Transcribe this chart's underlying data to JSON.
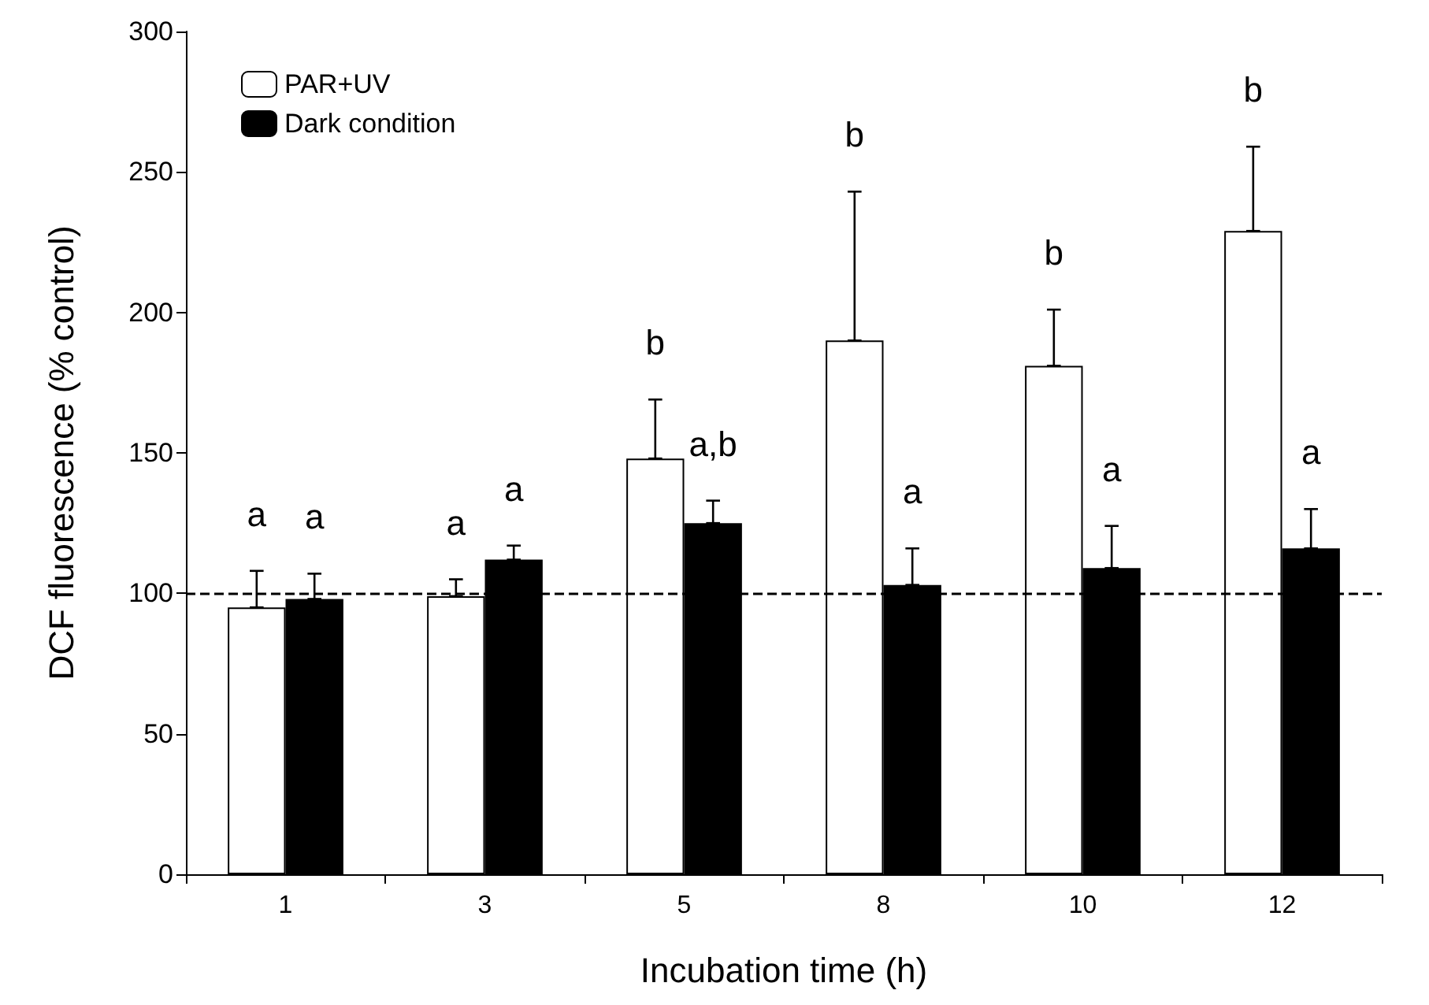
{
  "chart_data": {
    "type": "bar",
    "xlabel": "Incubation time (h)",
    "ylabel": "DCF fluorescence (% control)",
    "categories": [
      "1",
      "3",
      "5",
      "8",
      "10",
      "12"
    ],
    "series": [
      {
        "name": "PAR+UV",
        "color": "#ffffff",
        "values": [
          95,
          99,
          148,
          190,
          181,
          229
        ],
        "errors": [
          [
            95,
            108
          ],
          [
            99,
            105
          ],
          [
            148,
            169
          ],
          [
            190,
            243
          ],
          [
            181,
            201
          ],
          [
            229,
            259
          ]
        ]
      },
      {
        "name": "Dark condition",
        "color": "#000000",
        "values": [
          98,
          112,
          125,
          103,
          109,
          116
        ],
        "errors": [
          [
            98,
            107
          ],
          [
            112,
            117
          ],
          [
            125,
            133
          ],
          [
            103,
            116
          ],
          [
            109,
            124
          ],
          [
            116,
            130
          ]
        ]
      }
    ],
    "ylim": [
      0,
      300
    ],
    "yticks": [
      0,
      50,
      100,
      150,
      200,
      250,
      300
    ],
    "ref_lines": [
      {
        "axis": "y",
        "value": 100,
        "color": "#000000",
        "line_style": "dashed"
      }
    ],
    "annotations": [
      "a",
      "a",
      "a",
      "a",
      "b",
      "a,b",
      "b",
      "a",
      "b",
      "a",
      "b",
      "a"
    ],
    "grid": false,
    "legend": "top left"
  }
}
